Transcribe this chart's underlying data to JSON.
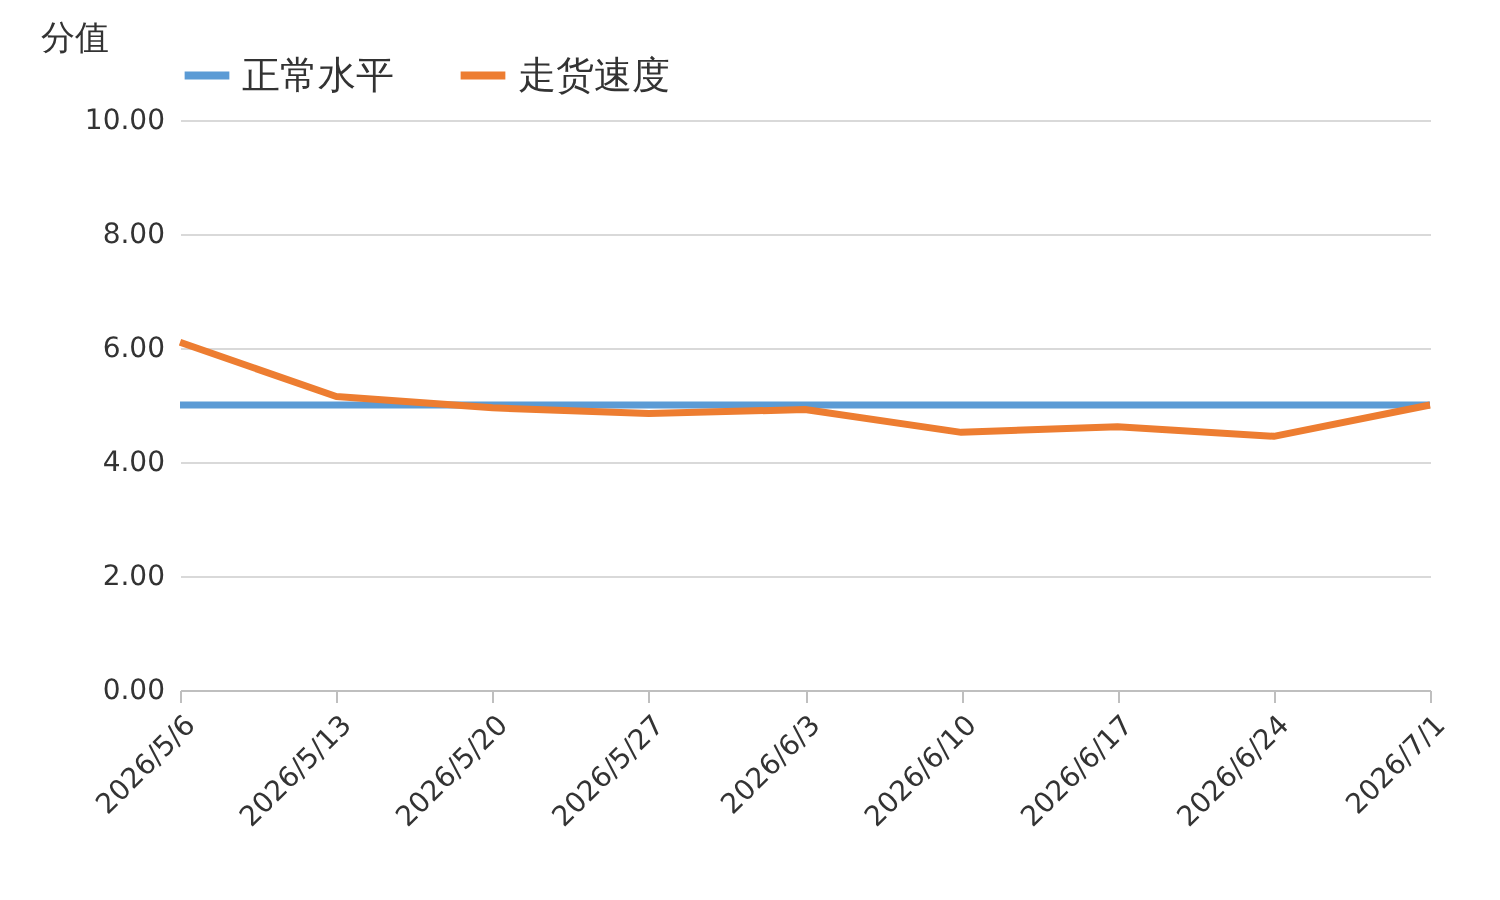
{
  "chart_data": {
    "type": "line",
    "ylabel": "分值",
    "categories": [
      "2026/5/6",
      "2026/5/13",
      "2026/5/20",
      "2026/5/27",
      "2026/6/3",
      "2026/6/10",
      "2026/6/17",
      "2026/6/24",
      "2026/7/1"
    ],
    "series": [
      {
        "name": "正常水平",
        "color": "#5b9bd5",
        "values": [
          5,
          5,
          5,
          5,
          5,
          5,
          5,
          5,
          5
        ]
      },
      {
        "name": "走货速度",
        "color": "#ed7d31",
        "values": [
          6.1,
          5.15,
          4.95,
          4.85,
          4.92,
          4.52,
          4.62,
          4.45,
          5.0
        ]
      }
    ],
    "ylim": [
      0,
      10
    ],
    "yticks": [
      {
        "value": 0,
        "label": "0.00"
      },
      {
        "value": 2,
        "label": "2.00"
      },
      {
        "value": 4,
        "label": "4.00"
      },
      {
        "value": 6,
        "label": "6.00"
      },
      {
        "value": 8,
        "label": "8.00"
      },
      {
        "value": 10,
        "label": "10.00"
      }
    ],
    "grid": "y",
    "legend": "top",
    "marker": "none",
    "line_style": "solid"
  }
}
